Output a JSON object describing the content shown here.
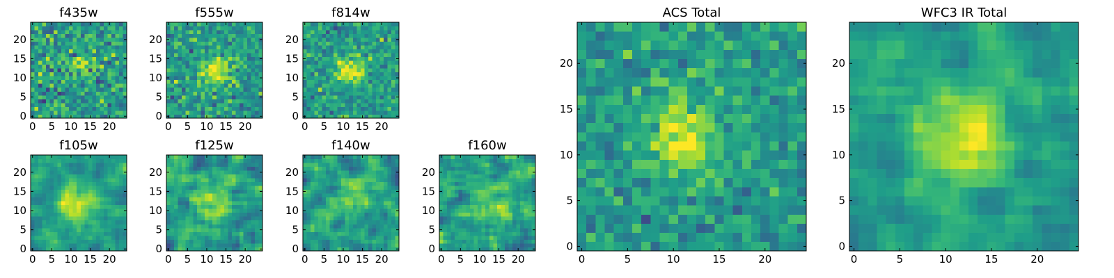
{
  "figure": {
    "background": "#ffffff"
  },
  "chart_data": [
    {
      "type": "heatmap",
      "title": "f435w",
      "xticks": [
        0,
        5,
        10,
        15,
        20
      ],
      "yticks": [
        0,
        5,
        10,
        15,
        20
      ],
      "xlim": [
        -0.5,
        24.5
      ],
      "ylim": [
        -0.5,
        24.5
      ],
      "grid_size": [
        25,
        25
      ],
      "colormap": "viridis",
      "source_center": [
        12,
        12
      ],
      "source_peak": 0.78,
      "noise": 0.26,
      "blur": 0
    },
    {
      "type": "heatmap",
      "title": "f555w",
      "xticks": [
        0,
        5,
        10,
        15,
        20
      ],
      "yticks": [
        0,
        5,
        10,
        15,
        20
      ],
      "xlim": [
        -0.5,
        24.5
      ],
      "ylim": [
        -0.5,
        24.5
      ],
      "grid_size": [
        25,
        25
      ],
      "colormap": "viridis",
      "source_center": [
        12,
        12
      ],
      "source_peak": 0.95,
      "noise": 0.22,
      "blur": 0
    },
    {
      "type": "heatmap",
      "title": "f814w",
      "xticks": [
        0,
        5,
        10,
        15,
        20
      ],
      "yticks": [
        0,
        5,
        10,
        15,
        20
      ],
      "xlim": [
        -0.5,
        24.5
      ],
      "ylim": [
        -0.5,
        24.5
      ],
      "grid_size": [
        25,
        25
      ],
      "colormap": "viridis",
      "source_center": [
        12,
        12
      ],
      "source_peak": 0.95,
      "noise": 0.2,
      "blur": 0
    },
    {
      "type": "heatmap",
      "title": "f105w",
      "xticks": [
        0,
        5,
        10,
        15,
        20
      ],
      "yticks": [
        0,
        5,
        10,
        15,
        20
      ],
      "xlim": [
        -0.5,
        24.5
      ],
      "ylim": [
        -0.5,
        24.5
      ],
      "grid_size": [
        25,
        25
      ],
      "colormap": "viridis",
      "source_center": [
        12,
        12
      ],
      "source_peak": 0.9,
      "noise": 0.2,
      "blur": 1
    },
    {
      "type": "heatmap",
      "title": "f125w",
      "xticks": [
        0,
        5,
        10,
        15,
        20
      ],
      "yticks": [
        0,
        5,
        10,
        15,
        20
      ],
      "xlim": [
        -0.5,
        24.5
      ],
      "ylim": [
        -0.5,
        24.5
      ],
      "grid_size": [
        25,
        25
      ],
      "colormap": "viridis",
      "source_center": [
        12,
        12
      ],
      "source_peak": 0.85,
      "noise": 0.27,
      "blur": 1
    },
    {
      "type": "heatmap",
      "title": "f140w",
      "xticks": [
        0,
        5,
        10,
        15,
        20
      ],
      "yticks": [
        0,
        5,
        10,
        15,
        20
      ],
      "xlim": [
        -0.5,
        24.5
      ],
      "ylim": [
        -0.5,
        24.5
      ],
      "grid_size": [
        25,
        25
      ],
      "colormap": "viridis",
      "source_center": [
        13,
        13
      ],
      "source_peak": 0.85,
      "noise": 0.27,
      "blur": 1
    },
    {
      "type": "heatmap",
      "title": "f160w",
      "xticks": [
        0,
        5,
        10,
        15,
        20
      ],
      "yticks": [
        0,
        5,
        10,
        15,
        20
      ],
      "xlim": [
        -0.5,
        24.5
      ],
      "ylim": [
        -0.5,
        24.5
      ],
      "grid_size": [
        25,
        25
      ],
      "colormap": "viridis",
      "source_center": [
        12,
        13
      ],
      "source_peak": 0.85,
      "noise": 0.27,
      "blur": 1
    },
    {
      "type": "heatmap",
      "title": "ACS Total",
      "xticks": [
        0,
        5,
        10,
        15,
        20
      ],
      "yticks": [
        0,
        5,
        10,
        15,
        20
      ],
      "xlim": [
        -0.5,
        24.5
      ],
      "ylim": [
        -0.5,
        24.5
      ],
      "grid_size": [
        25,
        25
      ],
      "colormap": "viridis",
      "source_center": [
        11,
        12
      ],
      "source_peak": 1.0,
      "noise": 0.18,
      "blur": 0
    },
    {
      "type": "heatmap",
      "title": "WFC3 IR Total",
      "xticks": [
        0,
        5,
        10,
        15,
        20
      ],
      "yticks": [
        0,
        5,
        10,
        15,
        20
      ],
      "xlim": [
        -0.5,
        24.5
      ],
      "ylim": [
        -0.5,
        24.5
      ],
      "grid_size": [
        25,
        25
      ],
      "colormap": "viridis",
      "source_center": [
        12,
        12
      ],
      "source_peak": 1.0,
      "noise": 0.18,
      "blur": 1
    }
  ]
}
